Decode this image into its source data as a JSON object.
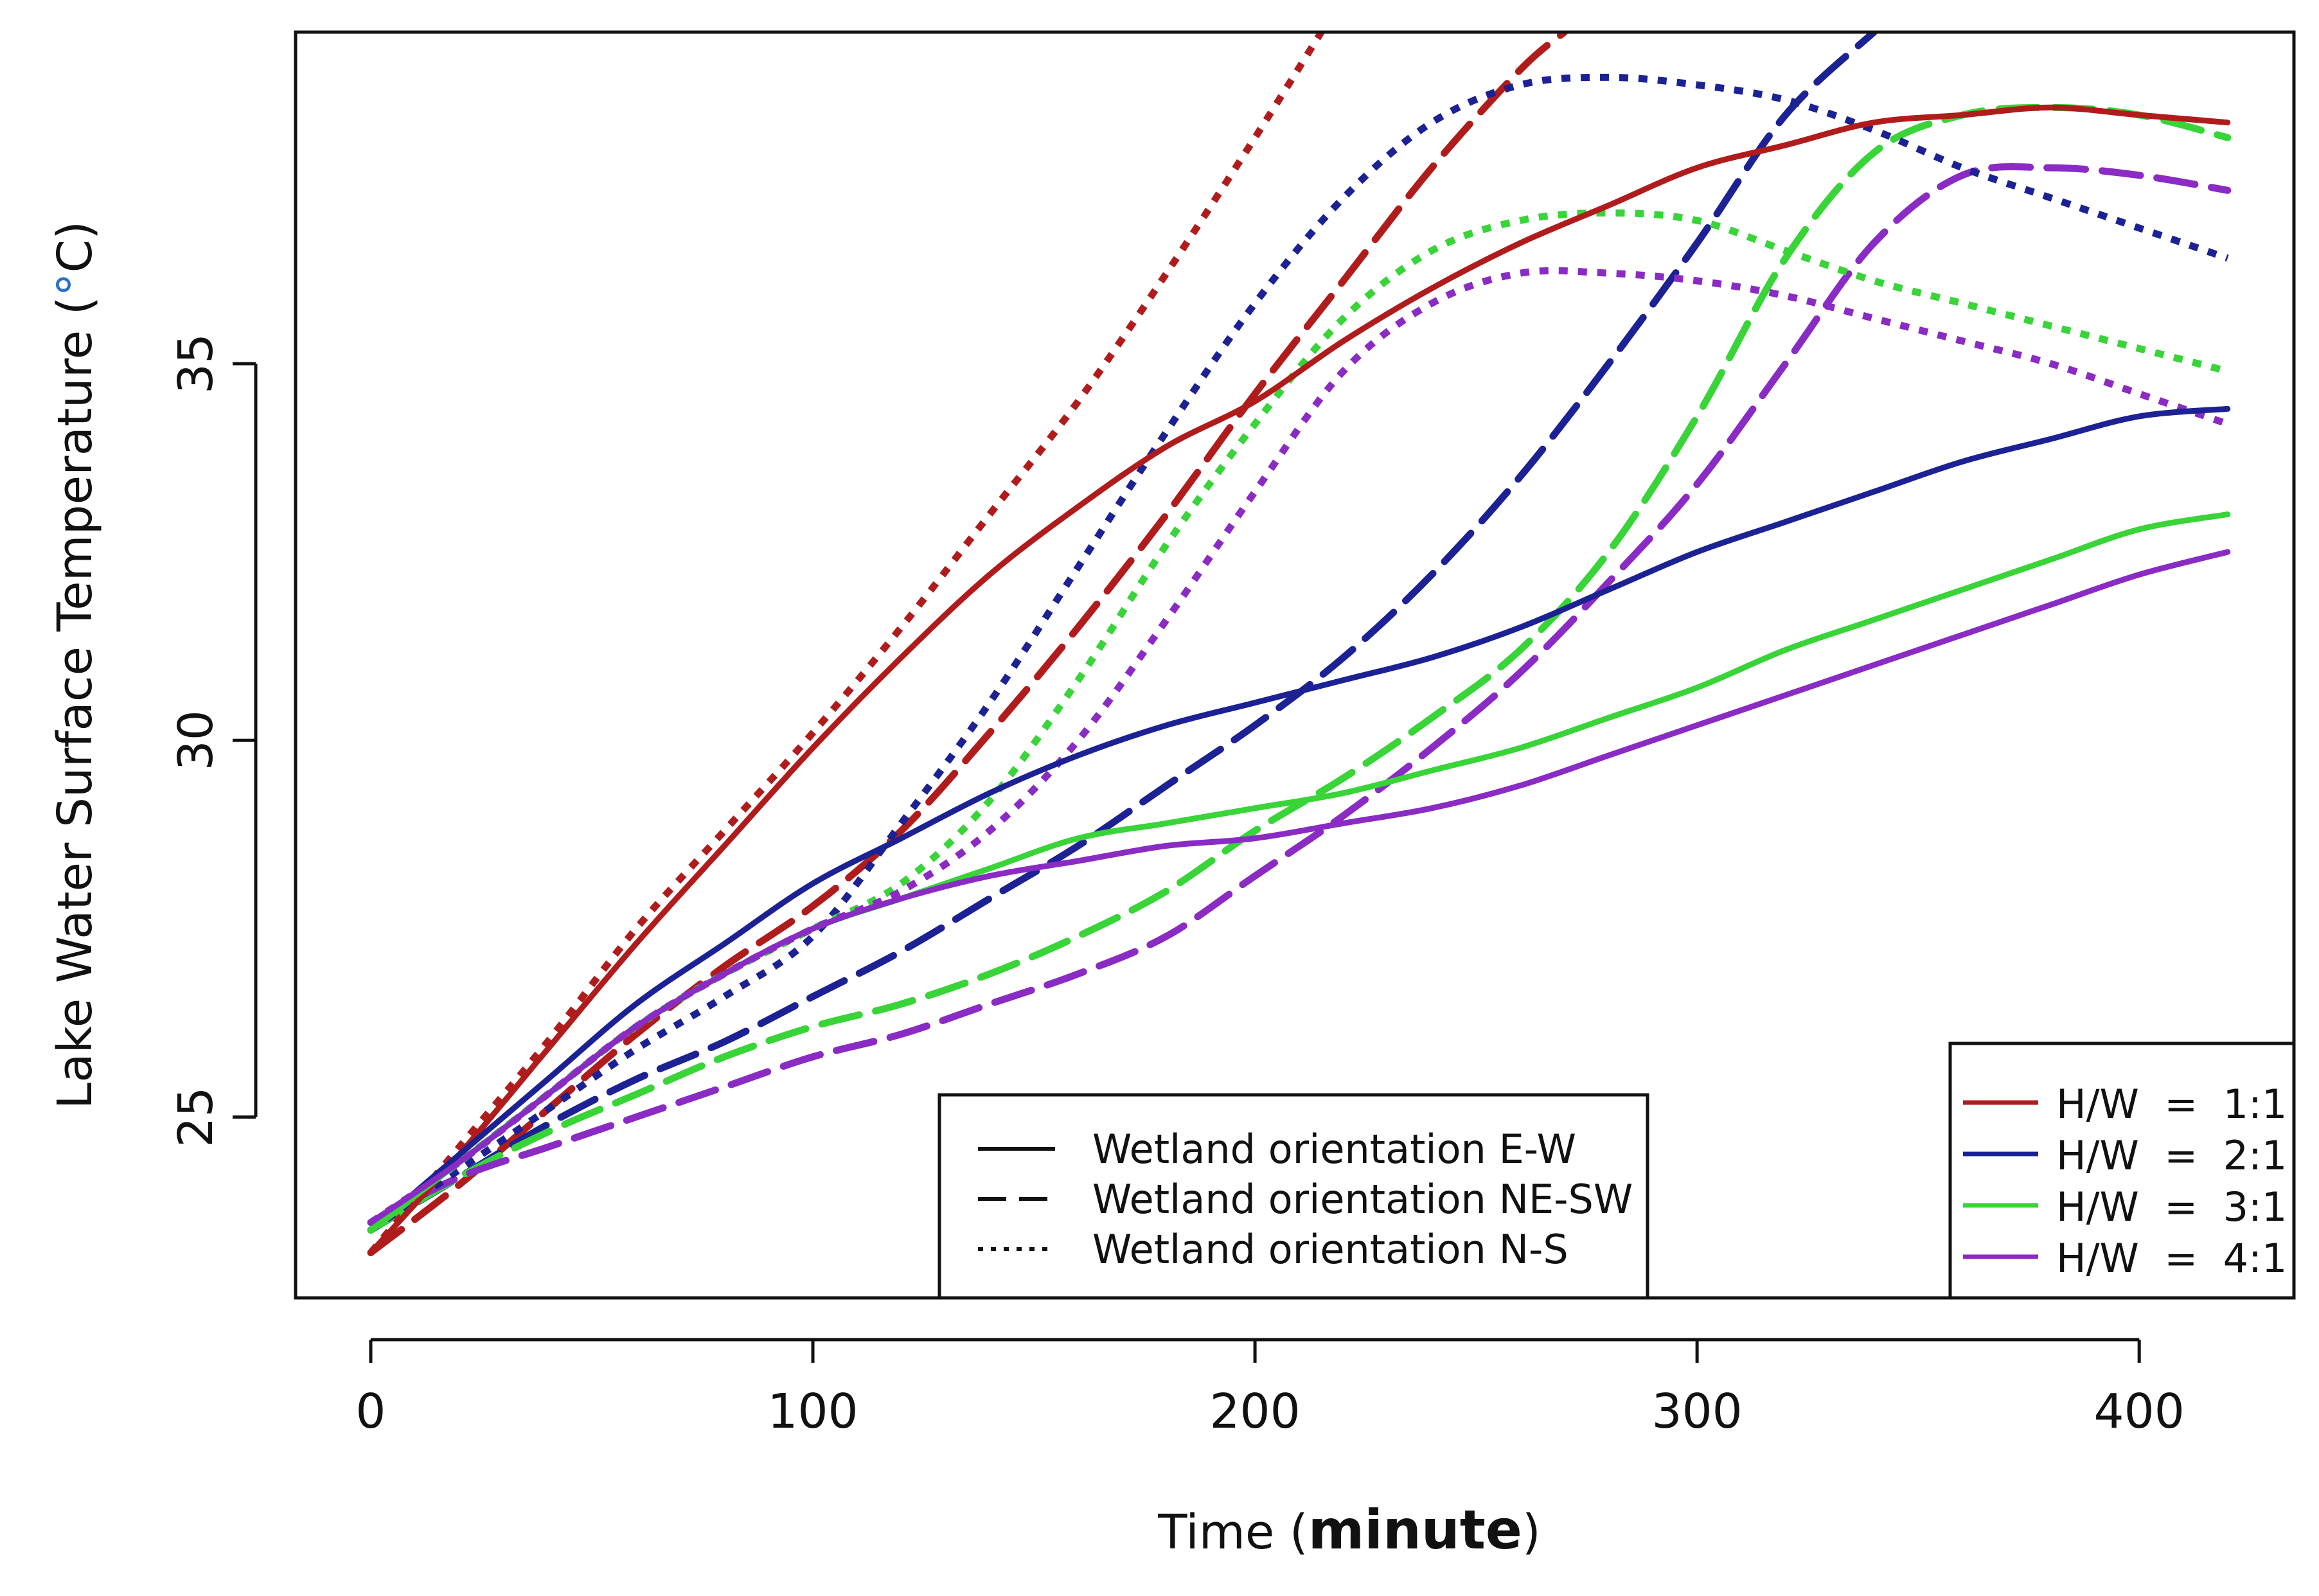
{
  "chart_data": {
    "type": "line",
    "title": "",
    "xlabel": {
      "prefix": "Time (",
      "unit": "minute",
      "suffix": ")"
    },
    "ylabel": {
      "prefix": "Lake Water Surface Temperature (",
      "degree": "°",
      "suffix": "C)"
    },
    "xlim": [
      -17,
      435
    ],
    "ylim": [
      22.6,
      39.4
    ],
    "xticks": [
      0,
      100,
      200,
      300,
      400
    ],
    "yticks": [
      25,
      30,
      35
    ],
    "grid": false,
    "colors": {
      "1:1": "#b01c1c",
      "2:1": "#1c2294",
      "3:1": "#38d438",
      "4:1": "#8a2bc4"
    },
    "series": [
      {
        "name": "H/W = 1:1, E-W",
        "color_key": "1:1",
        "style": "solid",
        "x": [
          0,
          20,
          40,
          60,
          80,
          100,
          120,
          140,
          160,
          180,
          200,
          220,
          240,
          260,
          280,
          300,
          320,
          340,
          360,
          380,
          400,
          420
        ],
        "y": [
          23.2,
          24.5,
          25.9,
          27.3,
          28.6,
          29.9,
          31.1,
          32.2,
          33.1,
          33.9,
          34.5,
          35.3,
          36.0,
          36.6,
          37.1,
          37.6,
          37.9,
          38.2,
          38.3,
          38.4,
          38.3,
          38.2
        ]
      },
      {
        "name": "H/W = 2:1, E-W",
        "color_key": "2:1",
        "style": "solid",
        "x": [
          0,
          20,
          40,
          60,
          80,
          100,
          120,
          140,
          160,
          180,
          200,
          220,
          240,
          260,
          280,
          300,
          320,
          340,
          360,
          380,
          400,
          420
        ],
        "y": [
          23.5,
          24.5,
          25.5,
          26.5,
          27.3,
          28.1,
          28.7,
          29.3,
          29.8,
          30.2,
          30.5,
          30.8,
          31.1,
          31.5,
          32.0,
          32.5,
          32.9,
          33.3,
          33.7,
          34.0,
          34.3,
          34.4
        ]
      },
      {
        "name": "H/W = 3:1, E-W",
        "color_key": "3:1",
        "style": "solid",
        "x": [
          0,
          20,
          40,
          60,
          80,
          100,
          120,
          140,
          160,
          180,
          200,
          220,
          240,
          260,
          280,
          300,
          320,
          340,
          360,
          380,
          400,
          420
        ],
        "y": [
          23.5,
          24.4,
          25.3,
          26.2,
          26.9,
          27.5,
          27.9,
          28.3,
          28.7,
          28.9,
          29.1,
          29.3,
          29.6,
          29.9,
          30.3,
          30.7,
          31.2,
          31.6,
          32.0,
          32.4,
          32.8,
          33.0
        ]
      },
      {
        "name": "H/W = 4:1, E-W",
        "color_key": "4:1",
        "style": "solid",
        "x": [
          0,
          20,
          40,
          60,
          80,
          100,
          120,
          140,
          160,
          180,
          200,
          220,
          240,
          260,
          280,
          300,
          320,
          340,
          360,
          380,
          400,
          420
        ],
        "y": [
          23.6,
          24.4,
          25.3,
          26.2,
          26.9,
          27.5,
          27.9,
          28.2,
          28.4,
          28.6,
          28.7,
          28.9,
          29.1,
          29.4,
          29.8,
          30.2,
          30.6,
          31.0,
          31.4,
          31.8,
          32.2,
          32.5
        ]
      },
      {
        "name": "H/W = 1:1, NE-SW",
        "color_key": "1:1",
        "style": "dashed",
        "x": [
          0,
          20,
          40,
          60,
          80,
          100,
          120,
          140,
          160,
          180,
          200,
          220,
          240,
          260,
          270
        ],
        "y": [
          23.2,
          24.1,
          25.1,
          26.1,
          27.0,
          27.8,
          28.8,
          30.1,
          31.5,
          33.0,
          34.6,
          36.1,
          37.6,
          38.9,
          39.4
        ]
      },
      {
        "name": "H/W = 2:1, NE-SW",
        "color_key": "2:1",
        "style": "dashed",
        "x": [
          0,
          20,
          40,
          60,
          80,
          100,
          120,
          140,
          160,
          180,
          200,
          220,
          240,
          260,
          280,
          300,
          320,
          340
        ],
        "y": [
          23.5,
          24.2,
          24.9,
          25.5,
          26.0,
          26.6,
          27.2,
          27.9,
          28.6,
          29.4,
          30.2,
          31.1,
          32.2,
          33.5,
          35.0,
          36.6,
          38.3,
          39.4
        ]
      },
      {
        "name": "H/W = 3:1, NE-SW",
        "color_key": "3:1",
        "style": "dashed",
        "x": [
          0,
          20,
          40,
          60,
          80,
          100,
          120,
          140,
          160,
          180,
          200,
          220,
          240,
          260,
          280,
          300,
          320,
          340,
          360,
          380,
          400,
          420
        ],
        "y": [
          23.5,
          24.2,
          24.8,
          25.3,
          25.8,
          26.2,
          26.5,
          26.9,
          27.4,
          28.0,
          28.8,
          29.5,
          30.3,
          31.2,
          32.5,
          34.3,
          36.4,
          37.8,
          38.3,
          38.4,
          38.3,
          38.0
        ]
      },
      {
        "name": "H/W = 4:1, NE-SW",
        "color_key": "4:1",
        "style": "dashed",
        "x": [
          0,
          20,
          40,
          60,
          80,
          100,
          120,
          140,
          160,
          180,
          200,
          220,
          240,
          260,
          280,
          300,
          320,
          340,
          360,
          380,
          400,
          420
        ],
        "y": [
          23.6,
          24.2,
          24.6,
          25.0,
          25.4,
          25.8,
          26.1,
          26.5,
          26.9,
          27.4,
          28.2,
          29.0,
          29.9,
          30.9,
          32.1,
          33.4,
          35.0,
          36.6,
          37.5,
          37.6,
          37.5,
          37.3
        ]
      },
      {
        "name": "H/W = 1:1, N-S",
        "color_key": "1:1",
        "style": "dotted",
        "x": [
          0,
          20,
          40,
          60,
          80,
          100,
          120,
          140,
          160,
          180,
          200,
          215
        ],
        "y": [
          23.2,
          24.6,
          26.0,
          27.5,
          28.8,
          30.1,
          31.5,
          33.0,
          34.5,
          36.2,
          38.0,
          39.4
        ]
      },
      {
        "name": "H/W = 2:1, N-S",
        "color_key": "2:1",
        "style": "dotted",
        "x": [
          0,
          20,
          40,
          60,
          80,
          100,
          120,
          140,
          160,
          180,
          200,
          220,
          240,
          260,
          280,
          300,
          320,
          340,
          360,
          380,
          400,
          420
        ],
        "y": [
          23.5,
          24.3,
          25.1,
          25.9,
          26.6,
          27.4,
          28.9,
          30.5,
          32.3,
          34.1,
          35.8,
          37.2,
          38.2,
          38.7,
          38.8,
          38.7,
          38.5,
          38.1,
          37.6,
          37.2,
          36.8,
          36.4
        ]
      },
      {
        "name": "H/W = 3:1, N-S",
        "color_key": "3:1",
        "style": "dotted",
        "x": [
          0,
          20,
          40,
          60,
          80,
          100,
          120,
          140,
          160,
          180,
          200,
          220,
          240,
          260,
          280,
          300,
          320,
          340,
          360,
          380,
          400,
          420
        ],
        "y": [
          23.5,
          24.4,
          25.3,
          26.2,
          26.9,
          27.5,
          28.1,
          29.2,
          30.8,
          32.6,
          34.2,
          35.6,
          36.5,
          36.9,
          37.0,
          36.9,
          36.5,
          36.1,
          35.8,
          35.5,
          35.2,
          34.9
        ]
      },
      {
        "name": "H/W = 4:1, N-S",
        "color_key": "4:1",
        "style": "dotted",
        "x": [
          0,
          20,
          40,
          60,
          80,
          100,
          120,
          140,
          160,
          180,
          200,
          220,
          240,
          260,
          280,
          300,
          320,
          340,
          360,
          380,
          400,
          420
        ],
        "y": [
          23.6,
          24.4,
          25.3,
          26.2,
          26.9,
          27.5,
          28.0,
          28.8,
          30.0,
          31.6,
          33.3,
          34.9,
          35.8,
          36.2,
          36.2,
          36.1,
          35.9,
          35.6,
          35.3,
          35.0,
          34.6,
          34.2
        ]
      }
    ],
    "legend_orientation": {
      "position": "bottom-center",
      "entries": [
        {
          "label": "Wetland orientation E-W",
          "style": "solid"
        },
        {
          "label": "Wetland orientation NE-SW",
          "style": "dashed"
        },
        {
          "label": "Wetland orientation N-S",
          "style": "dotted"
        }
      ]
    },
    "legend_ratio": {
      "position": "bottom-right",
      "entries": [
        {
          "label": "H/W  =  1:1",
          "color_key": "1:1"
        },
        {
          "label": "H/W  =  2:1",
          "color_key": "2:1"
        },
        {
          "label": "H/W  =  3:1",
          "color_key": "3:1"
        },
        {
          "label": "H/W  =  4:1",
          "color_key": "4:1"
        }
      ]
    }
  }
}
